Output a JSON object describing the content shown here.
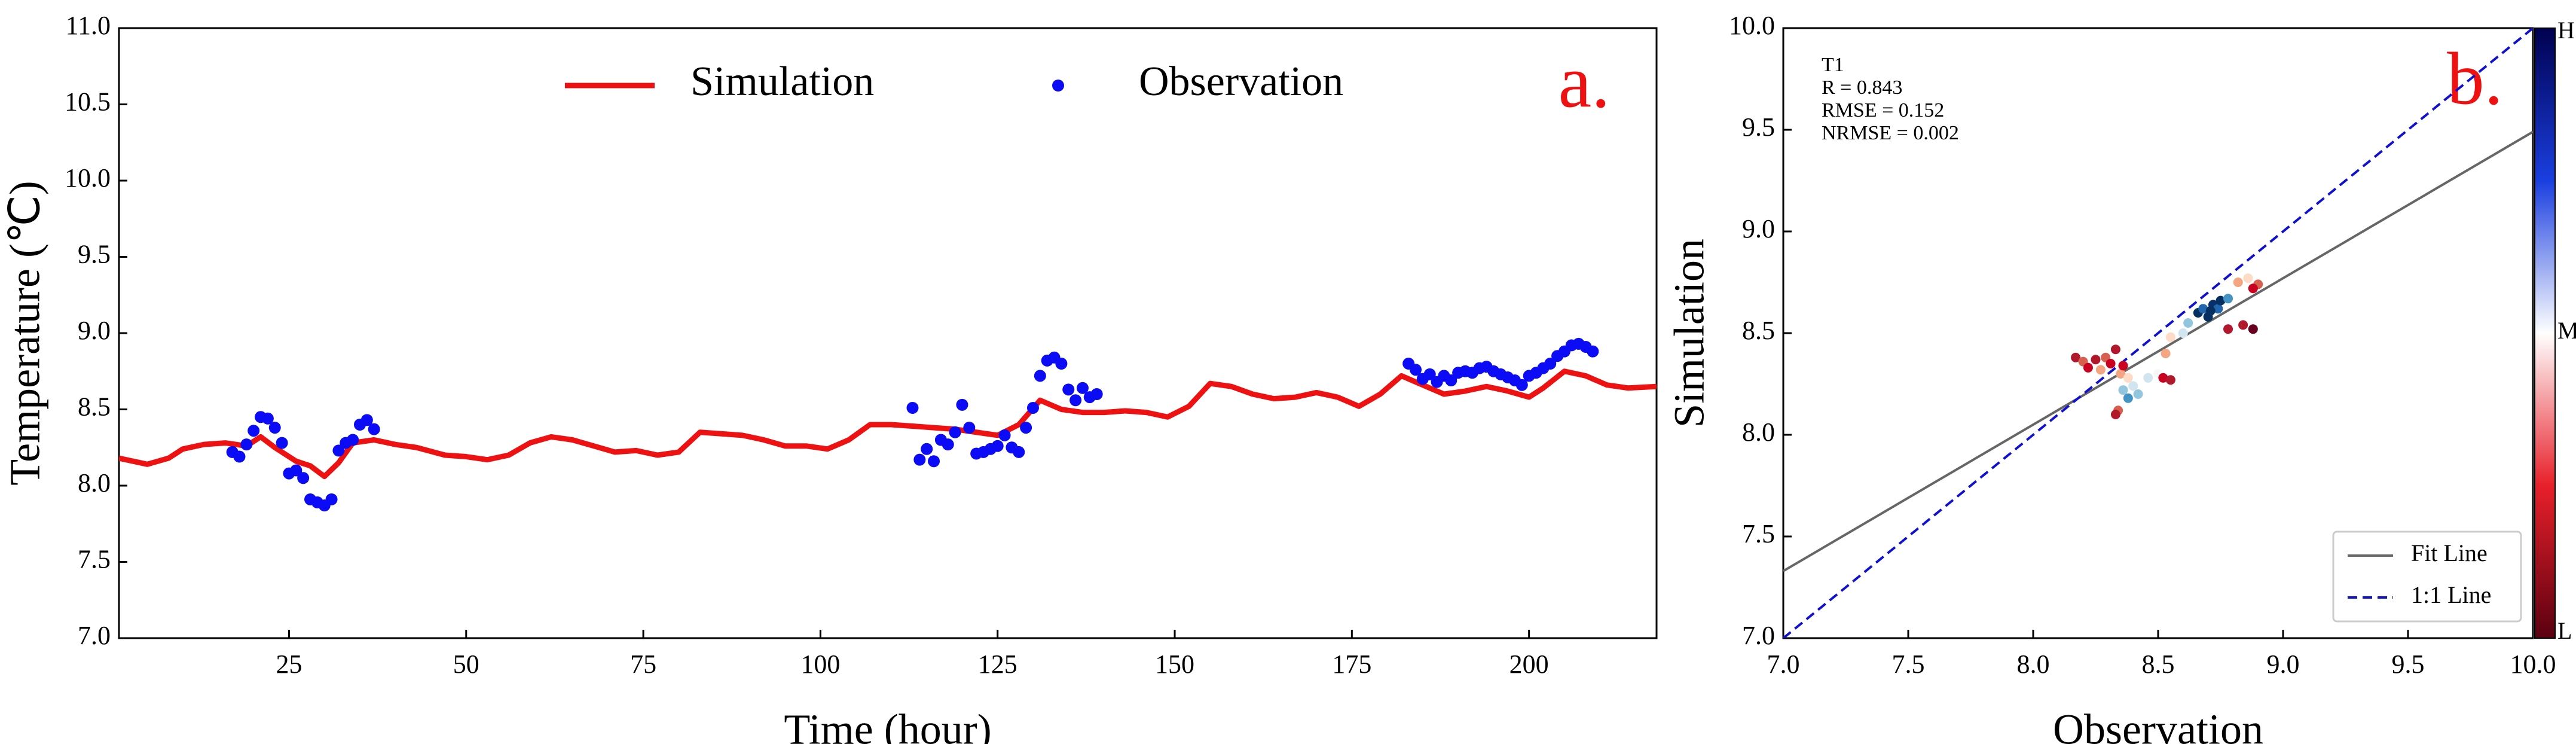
{
  "chart_data": [
    {
      "type": "line",
      "panel_label": "a.",
      "x_label": "Time (hour)",
      "y_label": "Temperature (℃)",
      "xlim": [
        1,
        218
      ],
      "xticks": [
        25,
        50,
        75,
        100,
        125,
        150,
        175,
        200
      ],
      "ylim": [
        7,
        11
      ],
      "yticks": [
        {
          "value": 7,
          "label": "7.0"
        },
        {
          "value": 7.5,
          "label": "7.5"
        },
        {
          "value": 8,
          "label": "8.0"
        },
        {
          "value": 8.5,
          "label": "8.5"
        },
        {
          "value": 9,
          "label": "9.0"
        },
        {
          "value": 9.5,
          "label": "9.5"
        },
        {
          "value": 10,
          "label": "10.0"
        },
        {
          "value": 10.5,
          "label": "10.5"
        },
        {
          "value": 11,
          "label": "11.0"
        }
      ],
      "legend": "upper center",
      "series": [
        {
          "name": "Simulation",
          "color": "#ee1111",
          "style": "line",
          "x": [
            1,
            5,
            8,
            10,
            13,
            16,
            19,
            21,
            23,
            26,
            28,
            30,
            32,
            34,
            37,
            40,
            43,
            47,
            50,
            53,
            56,
            59,
            62,
            65,
            68,
            71,
            74,
            77,
            80,
            83,
            86,
            89,
            92,
            95,
            98,
            101,
            104,
            107,
            110,
            113,
            116,
            119,
            122,
            125,
            128,
            131,
            134,
            137,
            140,
            143,
            146,
            149,
            152,
            155,
            158,
            161,
            164,
            167,
            170,
            173,
            176,
            179,
            182,
            185,
            188,
            191,
            194,
            197,
            200,
            202,
            205,
            208,
            211,
            214,
            218
          ],
          "values": [
            8.18,
            8.14,
            8.18,
            8.24,
            8.27,
            8.28,
            8.26,
            8.32,
            8.25,
            8.16,
            8.13,
            8.06,
            8.15,
            8.28,
            8.3,
            8.27,
            8.25,
            8.2,
            8.19,
            8.17,
            8.2,
            8.28,
            8.32,
            8.3,
            8.26,
            8.22,
            8.23,
            8.2,
            8.22,
            8.35,
            8.34,
            8.33,
            8.3,
            8.26,
            8.26,
            8.24,
            8.3,
            8.4,
            8.4,
            8.39,
            8.38,
            8.37,
            8.35,
            8.33,
            8.4,
            8.56,
            8.5,
            8.48,
            8.48,
            8.49,
            8.48,
            8.45,
            8.52,
            8.67,
            8.65,
            8.6,
            8.57,
            8.58,
            8.61,
            8.58,
            8.52,
            8.6,
            8.72,
            8.66,
            8.6,
            8.62,
            8.65,
            8.62,
            8.58,
            8.64,
            8.75,
            8.72,
            8.66,
            8.64,
            8.65
          ]
        },
        {
          "name": "Observation",
          "color": "#0b0bf5",
          "style": "marker",
          "x": [
            17,
            18,
            19,
            20,
            21,
            22,
            23,
            24,
            25,
            26,
            27,
            28,
            29,
            30,
            31,
            32,
            33,
            34,
            35,
            36,
            37,
            113,
            114,
            115,
            116,
            117,
            118,
            119,
            120,
            121,
            122,
            123,
            124,
            125,
            126,
            127,
            128,
            129,
            130,
            131,
            132,
            133,
            134,
            135,
            136,
            137,
            138,
            139,
            183,
            184,
            185,
            186,
            187,
            188,
            189,
            190,
            191,
            192,
            193,
            194,
            195,
            196,
            197,
            198,
            199,
            200,
            201,
            202,
            203,
            204,
            205,
            206,
            207,
            208,
            209
          ],
          "values": [
            8.22,
            8.19,
            8.27,
            8.36,
            8.45,
            8.44,
            8.38,
            8.28,
            8.08,
            8.1,
            8.05,
            7.91,
            7.89,
            7.87,
            7.91,
            8.23,
            8.28,
            8.3,
            8.4,
            8.43,
            8.37,
            8.51,
            8.17,
            8.24,
            8.16,
            8.3,
            8.27,
            8.35,
            8.53,
            8.38,
            8.21,
            8.22,
            8.24,
            8.26,
            8.33,
            8.25,
            8.22,
            8.38,
            8.51,
            8.72,
            8.82,
            8.84,
            8.8,
            8.63,
            8.56,
            8.64,
            8.58,
            8.6,
            8.8,
            8.76,
            8.7,
            8.73,
            8.68,
            8.72,
            8.69,
            8.74,
            8.75,
            8.74,
            8.77,
            8.78,
            8.75,
            8.73,
            8.71,
            8.69,
            8.66,
            8.72,
            8.74,
            8.77,
            8.8,
            8.85,
            8.88,
            8.92,
            8.93,
            8.91,
            8.88
          ]
        }
      ]
    },
    {
      "type": "scatter",
      "panel_label": "b.",
      "x_label": "Observation",
      "y_label": "Simulation",
      "annotations": [
        "T1",
        "R = 0.843",
        "RMSE = 0.152",
        "NRMSE = 0.002"
      ],
      "xlim": [
        7,
        10
      ],
      "xticks": [
        {
          "value": 7,
          "label": "7.0"
        },
        {
          "value": 7.5,
          "label": "7.5"
        },
        {
          "value": 8,
          "label": "8.0"
        },
        {
          "value": 8.5,
          "label": "8.5"
        },
        {
          "value": 9,
          "label": "9.0"
        },
        {
          "value": 9.5,
          "label": "9.5"
        },
        {
          "value": 10,
          "label": "10.0"
        }
      ],
      "ylim": [
        7,
        10
      ],
      "yticks": [
        {
          "value": 7,
          "label": "7.0"
        },
        {
          "value": 7.5,
          "label": "7.5"
        },
        {
          "value": 8,
          "label": "8.0"
        },
        {
          "value": 8.5,
          "label": "8.5"
        },
        {
          "value": 9,
          "label": "9.0"
        },
        {
          "value": 9.5,
          "label": "9.5"
        },
        {
          "value": 10,
          "label": "10.0"
        }
      ],
      "x": [
        8.17,
        8.2,
        8.22,
        8.25,
        8.27,
        8.29,
        8.31,
        8.33,
        8.35,
        8.34,
        8.33,
        8.36,
        8.38,
        8.36,
        8.38,
        8.4,
        8.42,
        8.46,
        8.5,
        8.52,
        8.55,
        8.53,
        8.55,
        8.6,
        8.62,
        8.66,
        8.68,
        8.7,
        8.72,
        8.74,
        8.75,
        8.78,
        8.71,
        8.82,
        8.86,
        8.9,
        8.88,
        8.84,
        8.88,
        8.78
      ],
      "values": [
        8.38,
        8.36,
        8.33,
        8.37,
        8.32,
        8.38,
        8.35,
        8.42,
        8.3,
        8.12,
        8.1,
        8.34,
        8.28,
        8.22,
        8.18,
        8.24,
        8.2,
        8.28,
        8.3,
        8.28,
        8.27,
        8.4,
        8.48,
        8.5,
        8.55,
        8.6,
        8.62,
        8.58,
        8.64,
        8.62,
        8.66,
        8.67,
        8.61,
        8.75,
        8.77,
        8.74,
        8.72,
        8.54,
        8.52,
        8.52
      ],
      "colors": [
        "#b2182b",
        "#d6604d",
        "#ca0020",
        "#b2182b",
        "#f4a582",
        "#d6604d",
        "#ca0020",
        "#b2182b",
        "#f4a582",
        "#d6604d",
        "#b2182b",
        "#ca0020",
        "#fddbc7",
        "#92c5de",
        "#4393c3",
        "#d1e5f0",
        "#92c5de",
        "#d1e5f0",
        "#f7f7f7",
        "#ca0020",
        "#b2182b",
        "#f4a582",
        "#fddbc7",
        "#d1e5f0",
        "#92c5de",
        "#053061",
        "#2166ac",
        "#053061",
        "#08306b",
        "#2166ac",
        "#053061",
        "#4393c3",
        "#053061",
        "#f4a582",
        "#fddbc7",
        "#d6604d",
        "#ca0020",
        "#b2182b",
        "#67001f",
        "#b2182b"
      ],
      "legend": "lower right",
      "lines": [
        {
          "name": "Fit Line",
          "color": "#666666",
          "style": "solid",
          "x": [
            7,
            10
          ],
          "values": [
            7.33,
            9.49
          ]
        },
        {
          "name": "1:1 Line",
          "color": "#1010d0",
          "style": "dashed",
          "x": [
            7,
            10
          ],
          "values": [
            7,
            10
          ]
        }
      ],
      "colorbar": {
        "labels": [
          "H",
          "M",
          "L"
        ],
        "colors": [
          "#00004f",
          "#1a3fe0",
          "#ffffff",
          "#e8202a",
          "#5a0010"
        ]
      }
    }
  ]
}
